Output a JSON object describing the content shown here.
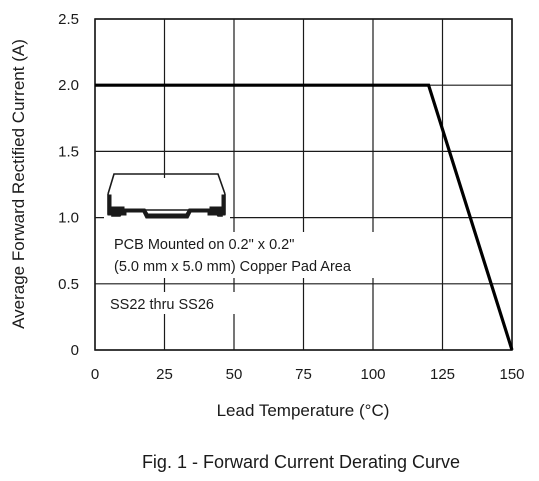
{
  "figure": {
    "caption": "Fig. 1 - Forward Current Derating Curve"
  },
  "chart_data": {
    "type": "line",
    "title": "",
    "xlabel": "Lead Temperature (°C)",
    "ylabel": "Average Forward Rectified Current (A)",
    "xlim": [
      0,
      150
    ],
    "ylim": [
      0,
      2.5
    ],
    "xticks": [
      0,
      25,
      50,
      75,
      100,
      125,
      150
    ],
    "yticks": [
      0,
      0.5,
      1.0,
      1.5,
      2.0,
      2.5
    ],
    "xtick_labels": [
      "0",
      "25",
      "50",
      "75",
      "100",
      "125",
      "150"
    ],
    "ytick_labels": [
      "0",
      "0.5",
      "1.0",
      "1.5",
      "2.0",
      "2.5"
    ],
    "grid": true,
    "series": [
      {
        "x": [
          0,
          120,
          150
        ],
        "y": [
          2.0,
          2.0,
          0
        ],
        "color": "#000000"
      }
    ],
    "annotations": [
      "PCB Mounted on 0.2\" x 0.2\"",
      "(5.0 mm x 5.0 mm) Copper Pad Area",
      "SS22 thru SS26"
    ]
  }
}
